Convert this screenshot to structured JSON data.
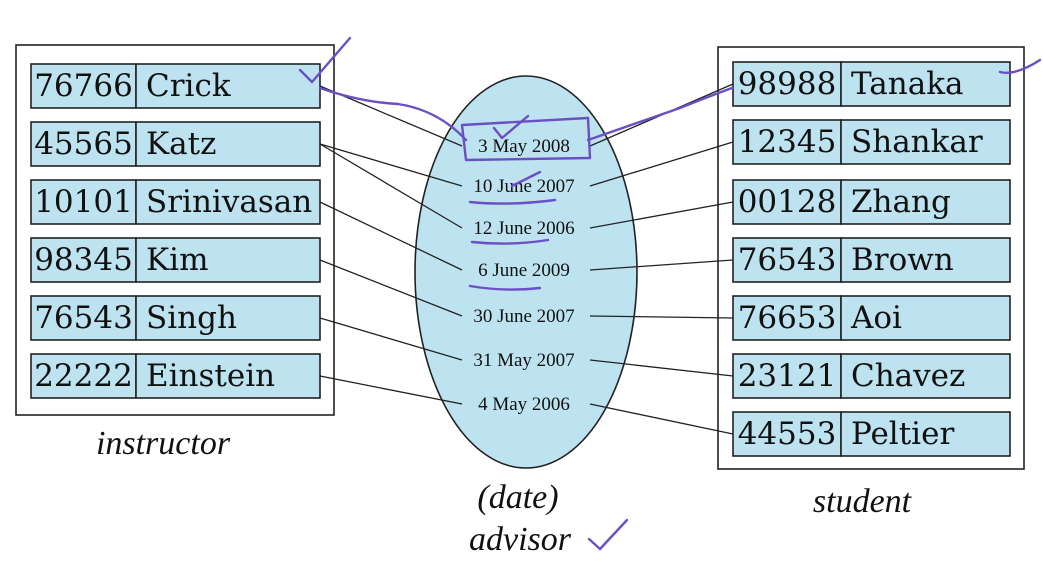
{
  "instructor": {
    "caption": "instructor",
    "rows": [
      {
        "id": "76766",
        "name": "Crick"
      },
      {
        "id": "45565",
        "name": "Katz"
      },
      {
        "id": "10101",
        "name": "Srinivasan"
      },
      {
        "id": "98345",
        "name": "Kim"
      },
      {
        "id": "76543",
        "name": "Singh"
      },
      {
        "id": "22222",
        "name": "Einstein"
      }
    ]
  },
  "student": {
    "caption": "student",
    "rows": [
      {
        "id": "98988",
        "name": "Tanaka"
      },
      {
        "id": "12345",
        "name": "Shankar"
      },
      {
        "id": "00128",
        "name": "Zhang"
      },
      {
        "id": "76543",
        "name": "Brown"
      },
      {
        "id": "76653",
        "name": "Aoi"
      },
      {
        "id": "23121",
        "name": "Chavez"
      },
      {
        "id": "44553",
        "name": "Peltier"
      }
    ]
  },
  "advisor": {
    "caption_attr": "(date)",
    "caption": "advisor",
    "dates": [
      "3 May 2008",
      "10 June 2007",
      "12 June 2006",
      "6 June 2009",
      "30 June 2007",
      "31 May 2007",
      "4 May 2006"
    ]
  },
  "links": [
    {
      "instructor": 0,
      "date": 0,
      "student": 0
    },
    {
      "instructor": 1,
      "date": 1,
      "student": 1
    },
    {
      "instructor": 1,
      "date": 2,
      "student": 2
    },
    {
      "instructor": 2,
      "date": 3,
      "student": 3
    },
    {
      "instructor": 3,
      "date": 4,
      "student": 4
    },
    {
      "instructor": 4,
      "date": 5,
      "student": 5
    },
    {
      "instructor": 5,
      "date": 6,
      "student": 6
    }
  ],
  "colors": {
    "cell_fill": "#bde3f0",
    "ellipse_fill": "#bde3f0",
    "annotation_ink": "#6b4fc4"
  }
}
